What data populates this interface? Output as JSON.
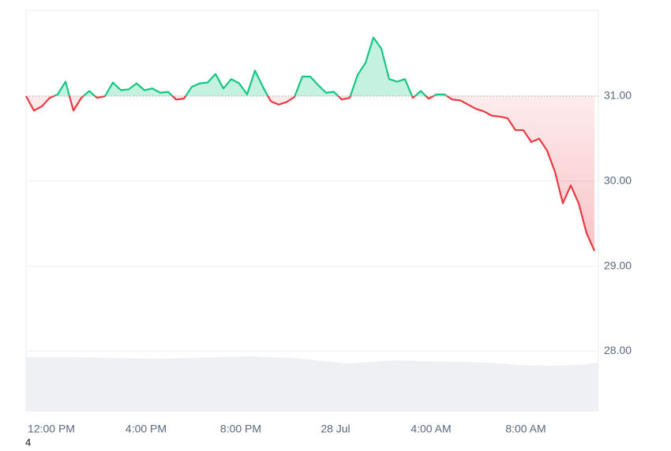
{
  "chart_data": {
    "type": "line",
    "series": [
      {
        "color": "#ea3943",
        "up_color": "#16c784",
        "values": [
          31.0,
          30.83,
          30.88,
          30.98,
          31.02,
          31.17,
          30.83,
          30.98,
          31.06,
          30.98,
          31.0,
          31.16,
          31.07,
          31.08,
          31.15,
          31.07,
          31.09,
          31.04,
          31.05,
          30.96,
          30.97,
          31.11,
          31.15,
          31.16,
          31.26,
          31.09,
          31.2,
          31.15,
          31.02,
          31.3,
          31.11,
          30.94,
          30.9,
          30.93,
          30.99,
          31.23,
          31.23,
          31.13,
          31.04,
          31.05,
          30.96,
          30.98,
          31.25,
          31.39,
          31.69,
          31.56,
          31.2,
          31.17,
          31.2,
          30.98,
          31.06,
          30.97,
          31.02,
          31.02,
          30.96,
          30.95,
          30.9,
          30.85,
          30.82,
          30.77,
          30.76,
          30.74,
          30.6,
          30.6,
          30.46,
          30.5,
          30.36,
          30.11,
          29.74,
          29.95,
          29.74,
          29.39,
          29.18
        ]
      }
    ],
    "baseline": 31,
    "xlim": [
      0,
      72
    ],
    "xticks": [
      {
        "value": 3.2,
        "label": "12:00 PM"
      },
      {
        "value": 15.2,
        "label": "4:00 PM"
      },
      {
        "value": 27.2,
        "label": "8:00 PM"
      },
      {
        "value": 39.2,
        "label": "28 Jul"
      },
      {
        "value": 51.3,
        "label": "4:00 AM"
      },
      {
        "value": 63.3,
        "label": "8:00 AM"
      }
    ],
    "ylim": [
      27.29,
      32.01
    ],
    "yticks": [
      {
        "value": 28,
        "label": "28.00"
      },
      {
        "value": 29,
        "label": "29.00"
      },
      {
        "value": 30,
        "label": "30.00"
      },
      {
        "value": 31,
        "label": "31.00"
      }
    ],
    "grid": true,
    "footnote": "4"
  }
}
